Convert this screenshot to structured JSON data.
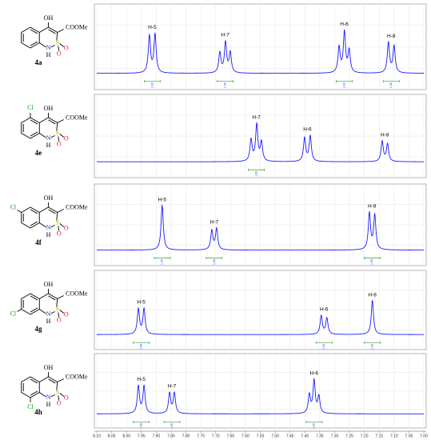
{
  "chart_data": {
    "type": "nmr-stack",
    "color": "#1a1aff",
    "ylim": [
      0,
      1
    ],
    "xlim": [
      8.1,
      7.0
    ],
    "xticks": [
      {
        "value": 8.1,
        "label": "8.10"
      },
      8.05,
      {
        "value": 8.0,
        "label": "8.00"
      },
      7.95,
      {
        "value": 7.9,
        "label": "7.90"
      },
      7.85,
      {
        "value": 7.8,
        "label": "7.80"
      },
      7.75,
      {
        "value": 7.7,
        "label": "7.70"
      },
      7.65,
      {
        "value": 7.6,
        "label": "7.60"
      },
      7.55,
      {
        "value": 7.5,
        "label": "7.50"
      },
      7.45,
      {
        "value": 7.4,
        "label": "7.40"
      },
      7.35,
      {
        "value": 7.3,
        "label": "7.30"
      },
      7.25,
      {
        "value": 7.2,
        "label": "7.20"
      },
      7.15,
      {
        "value": 7.1,
        "label": "7.10"
      },
      7.05,
      {
        "value": 7.0,
        "label": "7.00"
      }
    ],
    "panels": [
      {
        "compound": "4a",
        "structure": {
          "oh": "OH",
          "ester": "COOMe",
          "s": "S",
          "o1": "O",
          "o2": "O",
          "n": "N",
          "h": "H"
        },
        "signals": [
          {
            "label": "H-5",
            "peaks": [
              7.923,
              7.904
            ],
            "heights": [
              0.55,
              0.57
            ],
            "integral": 1,
            "integral_label": "1.00"
          },
          {
            "label": "H-7",
            "peaks": [
              7.686,
              7.667,
              7.651
            ],
            "heights": [
              0.3,
              0.45,
              0.3
            ],
            "integral": 1,
            "integral_label": "1.00"
          },
          {
            "label": "H-6",
            "peaks": [
              7.285,
              7.267,
              7.251
            ],
            "heights": [
              0.38,
              0.6,
              0.33
            ],
            "integral": 1,
            "integral_label": "1.00"
          },
          {
            "label": "H-8",
            "peaks": [
              7.119,
              7.1
            ],
            "heights": [
              0.45,
              0.4
            ],
            "integral": 1,
            "integral_label": "1.00"
          }
        ]
      },
      {
        "compound": "4e",
        "structure": {
          "oh": "OH",
          "ester": "COOMe",
          "s": "S",
          "o1": "O",
          "o2": "O",
          "n": "N",
          "h": "H"
        },
        "substituent": {
          "label": "Cl",
          "position": 5
        },
        "signals": [
          {
            "label": "H-7",
            "peaks": [
              7.581,
              7.562,
              7.546
            ],
            "heights": [
              0.33,
              0.56,
              0.29
            ],
            "integral": 1,
            "integral_label": "1.00"
          },
          {
            "label": "H-6",
            "peaks": [
              7.401,
              7.382
            ],
            "heights": [
              0.36,
              0.39
            ]
          },
          {
            "label": "H-8",
            "peaks": [
              7.14,
              7.122
            ],
            "heights": [
              0.31,
              0.27
            ]
          }
        ]
      },
      {
        "compound": "4f",
        "structure": {
          "oh": "OH",
          "ester": "COOMe",
          "s": "S",
          "o1": "O",
          "o2": "O",
          "n": "N",
          "h": "H"
        },
        "substituent": {
          "label": "Cl",
          "position": 6
        },
        "signals": [
          {
            "label": "H-5",
            "peaks": [
              7.88
            ],
            "heights": [
              0.7
            ],
            "integral": 1,
            "integral_label": "1.00"
          },
          {
            "label": "H-7",
            "peaks": [
              7.713,
              7.697
            ],
            "heights": [
              0.3,
              0.33
            ],
            "integral": 1,
            "integral_label": "1.00"
          },
          {
            "label": "H-8",
            "peaks": [
              7.183,
              7.165
            ],
            "heights": [
              0.57,
              0.54
            ],
            "integral": 1,
            "integral_label": "1.00"
          }
        ]
      },
      {
        "compound": "4g",
        "structure": {
          "oh": "OH",
          "ester": "COOMe",
          "s": "S",
          "o1": "O",
          "o2": "O",
          "n": "N",
          "h": "H"
        },
        "substituent": {
          "label": "Cl",
          "position": 7
        },
        "signals": [
          {
            "label": "H-5",
            "peaks": [
              7.96,
              7.941
            ],
            "heights": [
              0.41,
              0.41
            ],
            "integral": 1,
            "integral_label": "1.00"
          },
          {
            "label": "H-6",
            "peaks": [
              7.345,
              7.326
            ],
            "heights": [
              0.3,
              0.26
            ],
            "integral": 1,
            "integral_label": "1.00"
          },
          {
            "label": "H-8",
            "peaks": [
              7.173
            ],
            "heights": [
              0.55
            ],
            "integral": 1,
            "integral_label": "1.00"
          }
        ]
      },
      {
        "compound": "4h",
        "structure": {
          "oh": "OH",
          "ester": "COOMe",
          "s": "S",
          "o1": "O",
          "o2": "O",
          "n": "N",
          "h": "H"
        },
        "substituent": {
          "label": "Cl",
          "position": 8
        },
        "signals": [
          {
            "label": "H-5",
            "peaks": [
              7.96,
              7.941
            ],
            "heights": [
              0.47,
              0.47
            ],
            "integral": 1,
            "integral_label": "1.00"
          },
          {
            "label": "H-7",
            "peaks": [
              7.855,
              7.839
            ],
            "heights": [
              0.35,
              0.35
            ],
            "integral": 1,
            "integral_label": "1.00"
          },
          {
            "label": "H-6",
            "peaks": [
              7.385,
              7.369,
              7.353
            ],
            "heights": [
              0.32,
              0.56,
              0.29
            ],
            "integral": 1,
            "integral_label": "1.00"
          }
        ]
      }
    ]
  }
}
